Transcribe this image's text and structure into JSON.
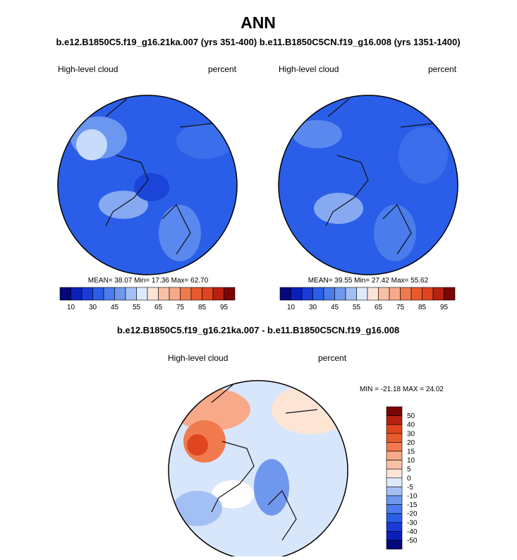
{
  "title": "ANN",
  "subtitle": "b.e12.B1850C5.f19_g16.21ka.007 (yrs 351-400) b.e11.B1850C5CN.f19_g16.008 (yrs 1351-1400)",
  "panels": [
    {
      "variable": "High-level cloud",
      "units": "percent",
      "stats": "MEAN=  38.07  Min=  17.36  Max=  62.70",
      "colorbar_labels": [
        "10",
        "30",
        "45",
        "55",
        "65",
        "75",
        "85",
        "95"
      ]
    },
    {
      "variable": "High-level cloud",
      "units": "percent",
      "stats": "MEAN=  39.55  Min=  27.42  Max=  55.62",
      "colorbar_labels": [
        "10",
        "30",
        "45",
        "55",
        "65",
        "75",
        "85",
        "95"
      ]
    }
  ],
  "difference": {
    "title": "b.e12.B1850C5.f19_g16.21ka.007 - b.e11.B1850C5CN.f19_g16.008",
    "variable": "High-level cloud",
    "units": "percent",
    "stats": "MIN = -21.18 MAX = 24.02",
    "colorbar_labels": [
      "50",
      "40",
      "30",
      "20",
      "15",
      "10",
      "5",
      "0",
      "-5",
      "-10",
      "-15",
      "-20",
      "-30",
      "-40",
      "-50"
    ]
  }
}
